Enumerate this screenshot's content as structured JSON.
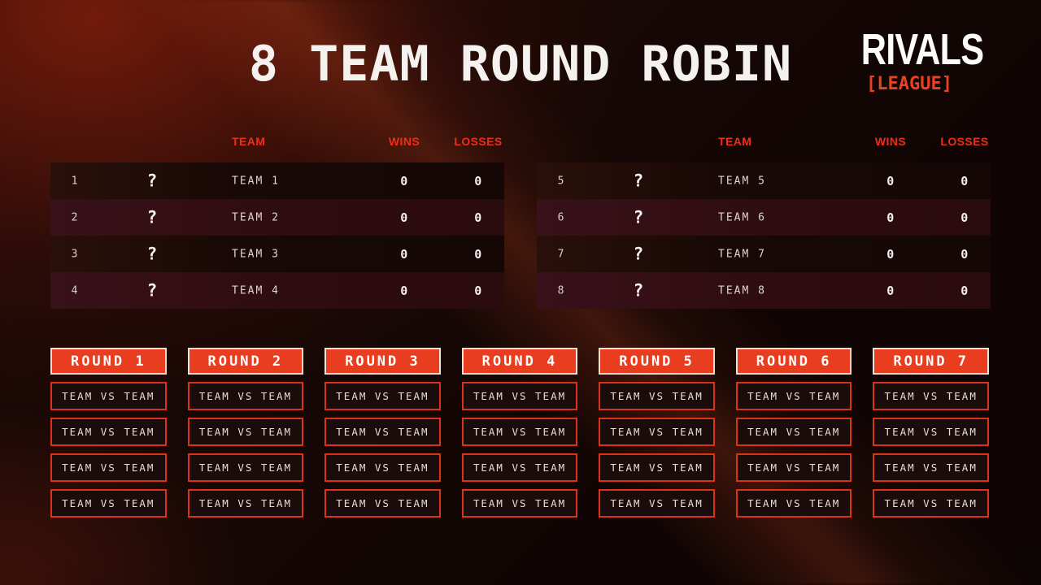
{
  "title": "8 TEAM ROUND ROBIN",
  "logo": {
    "brand": "RIVALS",
    "tagline": "[LEAGUE]",
    "star_icon": "✦"
  },
  "standings": {
    "columns": {
      "team": "TEAM",
      "wins": "WINS",
      "losses": "LOSSES"
    },
    "left_table": [
      {
        "rank": "1",
        "placeholder": "?",
        "name": "TEAM 1",
        "wins": "0",
        "losses": "0"
      },
      {
        "rank": "2",
        "placeholder": "?",
        "name": "TEAM 2",
        "wins": "0",
        "losses": "0"
      },
      {
        "rank": "3",
        "placeholder": "?",
        "name": "TEAM 3",
        "wins": "0",
        "losses": "0"
      },
      {
        "rank": "4",
        "placeholder": "?",
        "name": "TEAM 4",
        "wins": "0",
        "losses": "0"
      }
    ],
    "right_table": [
      {
        "rank": "5",
        "placeholder": "?",
        "name": "TEAM 5",
        "wins": "0",
        "losses": "0"
      },
      {
        "rank": "6",
        "placeholder": "?",
        "name": "TEAM 6",
        "wins": "0",
        "losses": "0"
      },
      {
        "rank": "7",
        "placeholder": "?",
        "name": "TEAM 7",
        "wins": "0",
        "losses": "0"
      },
      {
        "rank": "8",
        "placeholder": "?",
        "name": "TEAM 8",
        "wins": "0",
        "losses": "0"
      }
    ]
  },
  "rounds": [
    {
      "label": "ROUND 1",
      "matches": [
        "TEAM VS TEAM",
        "TEAM VS TEAM",
        "TEAM VS TEAM",
        "TEAM VS TEAM"
      ]
    },
    {
      "label": "ROUND 2",
      "matches": [
        "TEAM VS TEAM",
        "TEAM VS TEAM",
        "TEAM VS TEAM",
        "TEAM VS TEAM"
      ]
    },
    {
      "label": "ROUND 3",
      "matches": [
        "TEAM VS TEAM",
        "TEAM VS TEAM",
        "TEAM VS TEAM",
        "TEAM VS TEAM"
      ]
    },
    {
      "label": "ROUND 4",
      "matches": [
        "TEAM VS TEAM",
        "TEAM VS TEAM",
        "TEAM VS TEAM",
        "TEAM VS TEAM"
      ]
    },
    {
      "label": "ROUND 5",
      "matches": [
        "TEAM VS TEAM",
        "TEAM VS TEAM",
        "TEAM VS TEAM",
        "TEAM VS TEAM"
      ]
    },
    {
      "label": "ROUND 6",
      "matches": [
        "TEAM VS TEAM",
        "TEAM VS TEAM",
        "TEAM VS TEAM",
        "TEAM VS TEAM"
      ]
    },
    {
      "label": "ROUND 7",
      "matches": [
        "TEAM VS TEAM",
        "TEAM VS TEAM",
        "TEAM VS TEAM",
        "TEAM VS TEAM"
      ]
    }
  ],
  "colors": {
    "accent_red": "#e83d1e",
    "match_border_red": "#dc3318",
    "column_header_red": "#ee2d1a",
    "tagline_red": "#e64320",
    "text_light": "#f4f1ee",
    "background": "#120605",
    "row_odd": "#180806",
    "row_even": "#2e0c10"
  }
}
